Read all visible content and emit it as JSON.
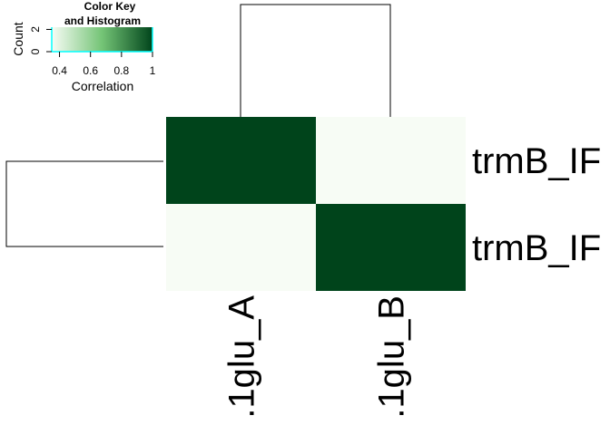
{
  "chart_data": {
    "type": "heatmap",
    "row_labels": [
      "trmB_IF",
      "trmB_IF"
    ],
    "col_labels": [
      ".1glu_A",
      ".1glu_B"
    ],
    "values": [
      [
        1.0,
        0.35
      ],
      [
        0.35,
        1.0
      ]
    ],
    "colors": {
      "low": "#f7fcf5",
      "high": "#00441b",
      "dendrogram": "#000000",
      "histogram": "#00ffff"
    },
    "row_dendrogram": true,
    "col_dendrogram": true,
    "color_key": {
      "title_line1": "Color Key",
      "title_line2": "and Histogram",
      "xlabel": "Correlation",
      "ylabel": "Count",
      "xticks": [
        "0.4",
        "0.6",
        "0.8",
        "1"
      ],
      "xtick_values": [
        0.4,
        0.6,
        0.8,
        1.0
      ],
      "yticks": [
        "0",
        "2"
      ],
      "ytick_values": [
        0,
        2
      ],
      "range": [
        0.35,
        1.0
      ]
    }
  }
}
